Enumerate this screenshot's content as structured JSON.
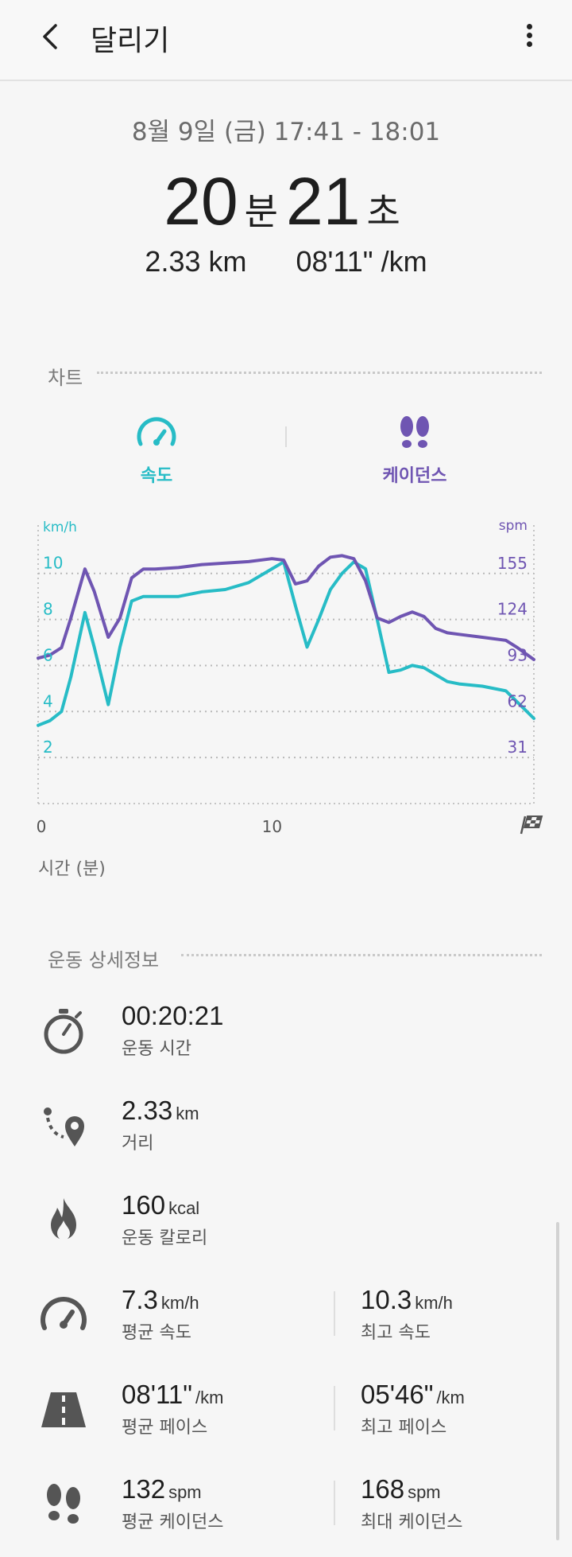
{
  "header": {
    "title": "달리기"
  },
  "summary": {
    "date_range": "8월 9일 (금) 17:41 - 18:01",
    "minutes": "20",
    "minutes_unit": "분",
    "seconds": "21",
    "seconds_unit": "초",
    "distance": "2.33 km",
    "pace": "08'11\" /km"
  },
  "chart_section": {
    "label": "차트",
    "tabs": [
      {
        "label": "속도",
        "icon": "speedometer-icon",
        "color": "#27bcc6"
      },
      {
        "label": "케이던스",
        "icon": "footsteps-icon",
        "color": "#6f55b2"
      }
    ],
    "time_axis_label": "시간 (분)"
  },
  "chart_data": {
    "type": "line",
    "x_unit": "min",
    "xlim": [
      0,
      21.2
    ],
    "x_ticks": [
      0,
      10
    ],
    "left_axis": {
      "label": "km/h",
      "ticks": [
        2,
        4,
        6,
        8,
        10
      ],
      "ylim": [
        0,
        12.1
      ]
    },
    "right_axis": {
      "label": "spm",
      "ticks": [
        31,
        62,
        93,
        124,
        155
      ],
      "ylim": [
        0,
        187.6
      ]
    },
    "series": [
      {
        "axis": "left",
        "color": "#27bcc6",
        "x": [
          0,
          0.5,
          1,
          1.4,
          2,
          2.4,
          3,
          3.5,
          4,
          4.5,
          5,
          6,
          7,
          8,
          9,
          10,
          10.5,
          11,
          11.5,
          12,
          12.5,
          13,
          13.5,
          14,
          14.5,
          15,
          15.5,
          16,
          16.5,
          17,
          17.5,
          18,
          19,
          20,
          20.5,
          21.2
        ],
        "values": [
          3.4,
          3.6,
          4.0,
          5.5,
          8.3,
          6.8,
          4.3,
          6.8,
          8.8,
          9.0,
          9.0,
          9.0,
          9.2,
          9.3,
          9.6,
          10.2,
          10.5,
          8.6,
          6.8,
          8.0,
          9.3,
          10.0,
          10.5,
          10.2,
          8.0,
          5.7,
          5.8,
          6.0,
          5.9,
          5.6,
          5.3,
          5.2,
          5.1,
          4.9,
          4.4,
          3.7
        ]
      },
      {
        "axis": "right",
        "color": "#6f55b2",
        "x": [
          0,
          0.5,
          1,
          1.4,
          2,
          2.4,
          3,
          3.5,
          4,
          4.5,
          5,
          6,
          7,
          8,
          9,
          10,
          10.5,
          11,
          11.5,
          12,
          12.5,
          13,
          13.5,
          14,
          14.5,
          15,
          15.5,
          16,
          16.5,
          17,
          17.5,
          18,
          19,
          20,
          20.5,
          21.2
        ],
        "values": [
          98,
          100,
          105,
          125,
          158,
          143,
          112,
          125,
          152,
          158,
          158,
          159,
          161,
          162,
          163,
          165,
          164,
          148,
          150,
          160,
          166,
          167,
          165,
          150,
          125,
          122,
          126,
          129,
          126,
          118,
          115,
          114,
          112,
          110,
          105,
          97
        ]
      }
    ]
  },
  "details": {
    "label": "운동 상세정보",
    "duration": {
      "value": "00:20:21",
      "label": "운동 시간"
    },
    "distance": {
      "value": "2.33",
      "unit": "km",
      "label": "거리"
    },
    "calories": {
      "value": "160",
      "unit": "kcal",
      "label": "운동 칼로리"
    },
    "avg_speed": {
      "value": "7.3",
      "unit": "km/h",
      "label": "평균 속도"
    },
    "max_speed": {
      "value": "10.3",
      "unit": "km/h",
      "label": "최고 속도"
    },
    "avg_pace": {
      "value": "08'11\"",
      "unit": "/km",
      "label": "평균 페이스"
    },
    "best_pace": {
      "value": "05'46\"",
      "unit": "/km",
      "label": "최고 페이스"
    },
    "avg_cadence": {
      "value": "132",
      "unit": "spm",
      "label": "평균 케이던스"
    },
    "max_cadence": {
      "value": "168",
      "unit": "spm",
      "label": "최대 케이던스"
    }
  }
}
